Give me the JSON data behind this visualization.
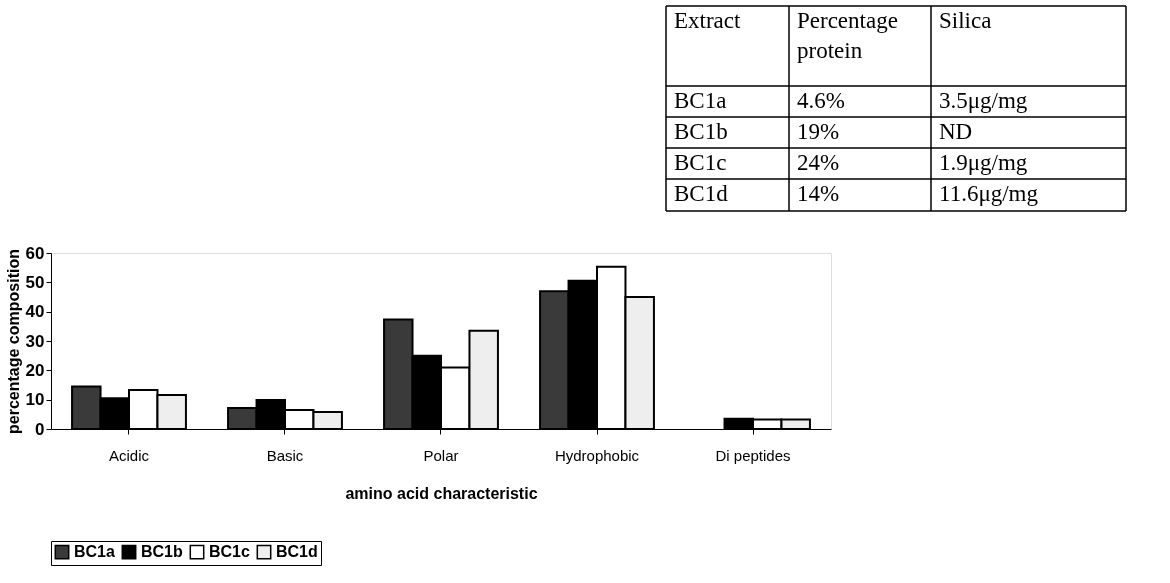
{
  "chart_data": {
    "type": "bar",
    "xlabel": "amino acid characteristic",
    "ylabel": "percentage composition",
    "categories": [
      "Acidic",
      "Basic",
      "Polar",
      "Hydrophobic",
      "Di peptides"
    ],
    "series": [
      {
        "name": "BC1a",
        "color": "#3a3a3a",
        "values": [
          14.5,
          7.2,
          37.3,
          47,
          null
        ]
      },
      {
        "name": "BC1b",
        "color": "#000000",
        "values": [
          10.5,
          9.9,
          25,
          50.5,
          3.5
        ]
      },
      {
        "name": "BC1c",
        "color": "#ffffff",
        "values": [
          13.3,
          6.5,
          21,
          55.3,
          3.2
        ]
      },
      {
        "name": "BC1d",
        "color": "#eeeeee",
        "values": [
          11.6,
          5.8,
          33.5,
          45,
          3.2
        ]
      }
    ],
    "ylim": [
      0,
      60
    ],
    "yticks": [
      0,
      10,
      20,
      30,
      40,
      50,
      60
    ],
    "grid": false,
    "legend": "bottom",
    "annotations": [
      "Extract",
      "Percentage protein",
      "Silica",
      "BC1a",
      "4.6%",
      "3.5μg/mg",
      "BC1b",
      "19%",
      "ND",
      "BC1c",
      "24%",
      "1.9μg/mg",
      "BC1d",
      "14%",
      "11.6μg/mg"
    ]
  }
}
